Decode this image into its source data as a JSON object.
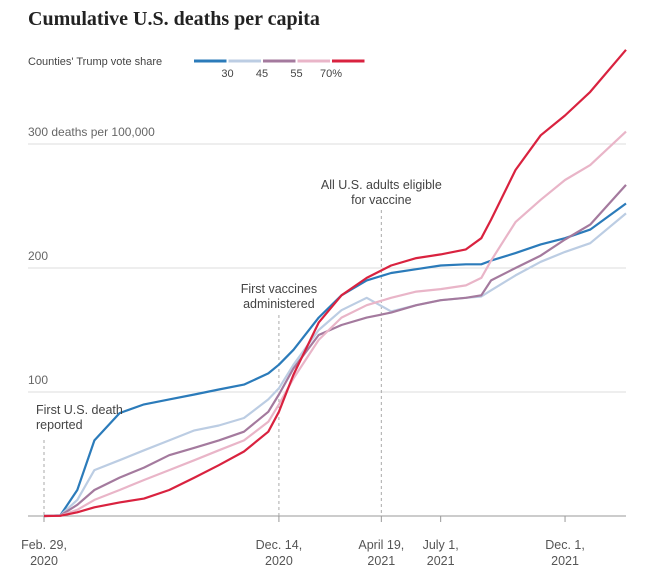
{
  "chart_data": {
    "type": "line",
    "title": "Cumulative U.S. deaths per capita",
    "legend_title": "Counties' Trump vote share",
    "legend_labels": [
      "30",
      "45",
      "55",
      "70%"
    ],
    "x": [
      "2020-02-29",
      "2020-03-20",
      "2020-04-10",
      "2020-05-01",
      "2020-06-01",
      "2020-07-01",
      "2020-08-01",
      "2020-09-01",
      "2020-10-01",
      "2020-11-01",
      "2020-12-01",
      "2020-12-14",
      "2021-01-01",
      "2021-02-01",
      "2021-03-01",
      "2021-04-01",
      "2021-05-01",
      "2021-06-01",
      "2021-07-01",
      "2021-08-01",
      "2021-08-20",
      "2021-09-01",
      "2021-10-01",
      "2021-11-01",
      "2021-12-01",
      "2022-01-01",
      "2022-02-14"
    ],
    "series": [
      {
        "color": "#2b7bba",
        "values": [
          0,
          0.5,
          21,
          61,
          83,
          90,
          94,
          98,
          102,
          106,
          115,
          122,
          134,
          160,
          178,
          190,
          196,
          199,
          202,
          203,
          203,
          206,
          212,
          219,
          224,
          231,
          252
        ]
      },
      {
        "color": "#bccde3",
        "values": [
          0,
          0.5,
          13,
          37,
          45,
          53,
          61,
          69,
          73,
          79,
          94,
          103,
          122,
          150,
          166,
          176,
          165,
          170,
          174,
          176,
          177,
          182,
          194,
          205,
          213,
          220,
          244
        ]
      },
      {
        "color": "#a47a9e",
        "values": [
          0,
          0.3,
          9,
          21,
          31,
          39,
          49,
          55,
          61,
          68,
          84,
          98,
          119,
          146,
          154,
          160,
          164,
          170,
          174,
          176,
          178,
          190,
          200,
          210,
          223,
          235,
          267
        ]
      },
      {
        "color": "#e9b5c8",
        "values": [
          0,
          0.2,
          5,
          13,
          21,
          29,
          37,
          45,
          53,
          61,
          76,
          90,
          111,
          142,
          160,
          170,
          176,
          181,
          183,
          186,
          192,
          206,
          237,
          255,
          271,
          283,
          310
        ]
      },
      {
        "color": "#d9223f",
        "values": [
          0,
          0.2,
          3,
          7,
          11,
          14,
          21,
          31,
          41,
          52,
          68,
          84,
          114,
          156,
          178,
          192,
          202,
          208,
          211,
          215,
          224,
          239,
          279,
          307,
          323,
          342,
          376
        ]
      }
    ],
    "xlim": [
      "2020-02-29",
      "2022-02-14"
    ],
    "xticks": [
      {
        "value": "2020-02-29",
        "label": "Feb. 29, 2020"
      },
      {
        "value": "2020-12-14",
        "label": "Dec. 14, 2020"
      },
      {
        "value": "2021-04-19",
        "label": "April 19, 2021"
      },
      {
        "value": "2021-07-01",
        "label": "July 1, 2021"
      },
      {
        "value": "2021-12-01",
        "label": "Dec. 1, 2021"
      }
    ],
    "ylim": [
      0,
      380
    ],
    "yticks": [
      0,
      100,
      200,
      {
        "value": 300,
        "label": "300 deaths per 100,000"
      }
    ],
    "annotations": [
      "First U.S. death reported",
      "First vaccines administered",
      "All U.S. adults eligible for vaccine"
    ],
    "grid": true
  }
}
